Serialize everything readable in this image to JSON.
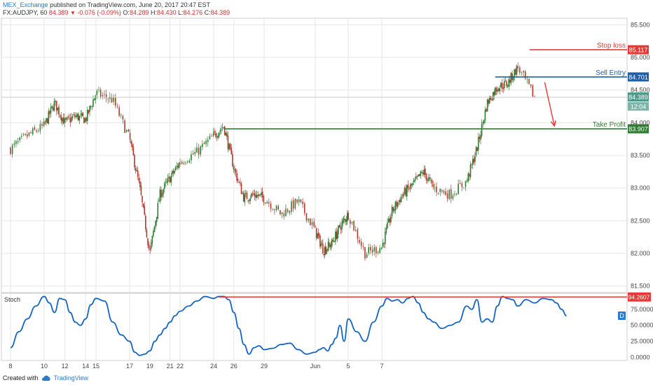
{
  "header": {
    "publisher": "MEX_Exchange",
    "published_text": "published on TradingView.com, June 20, 2017 20:47 EST",
    "symbol": "FX:AUDJPY, 60",
    "last": "84.389",
    "change": "-0.076 (-0.09%)",
    "open_label": "O:",
    "open": "84.289",
    "high_label": "H:",
    "high": "84.430",
    "low_label": "L:",
    "low": "84.276",
    "close_label": "C:",
    "close": "84.389"
  },
  "footer": {
    "created_with": "Created with",
    "brand": "TradingView"
  },
  "colors": {
    "up": "#2e7d32",
    "down": "#b03a2e",
    "stop": "#e53935",
    "entry": "#1f5fa8",
    "target": "#2e7d32",
    "stoch": "#1565c0",
    "current": "#4f9a8b",
    "grid": "#e6e6e6"
  },
  "chart_data": [
    {
      "type": "candlestick",
      "title": "",
      "ylim": [
        81.4,
        85.6
      ],
      "y_ticks": [
        "85.500",
        "85.000",
        "84.500",
        "84.000",
        "83.500",
        "83.000",
        "82.500",
        "82.000",
        "81.500"
      ],
      "x_ticks": [
        "8",
        "10",
        "15",
        "17",
        "22",
        "24",
        "29",
        "Jun",
        "5",
        "7",
        "12",
        "14",
        "19",
        "21",
        "26"
      ],
      "close_path": [
        [
          "May 8",
          83.6
        ],
        [
          "May 9",
          83.8
        ],
        [
          "May 10",
          83.95
        ],
        [
          "May 11",
          84.3
        ],
        [
          "May 12",
          84.0
        ],
        [
          "May 13",
          84.1
        ],
        [
          "May 14",
          84.05
        ],
        [
          "May 15",
          84.45
        ],
        [
          "May 16",
          84.35
        ],
        [
          "May 17",
          83.75
        ],
        [
          "May 18",
          83.0
        ],
        [
          "May 19",
          82.0
        ],
        [
          "May 20",
          82.9
        ],
        [
          "May 21",
          83.15
        ],
        [
          "May 22",
          83.4
        ],
        [
          "May 23",
          83.55
        ],
        [
          "May 24",
          83.8
        ],
        [
          "May 25",
          83.95
        ],
        [
          "May 26",
          83.3
        ],
        [
          "May 27",
          82.85
        ],
        [
          "May 28",
          82.9
        ],
        [
          "May 29",
          82.85
        ],
        [
          "May 30",
          82.6
        ],
        [
          "May 31",
          82.8
        ],
        [
          "Jun 1",
          82.35
        ],
        [
          "Jun 2",
          82.05
        ],
        [
          "Jun 3",
          82.15
        ],
        [
          "Jun 4",
          82.4
        ],
        [
          "Jun 5",
          82.6
        ],
        [
          "Jun 6",
          82.0
        ],
        [
          "Jun 7",
          82.1
        ],
        [
          "Jun 8",
          82.65
        ],
        [
          "Jun 9",
          82.9
        ],
        [
          "Jun 10",
          83.05
        ],
        [
          "Jun 11",
          83.25
        ],
        [
          "Jun 12",
          83.0
        ],
        [
          "Jun 13",
          82.9
        ],
        [
          "Jun 14",
          83.1
        ],
        [
          "Jun 15",
          83.6
        ],
        [
          "Jun 16",
          84.3
        ],
        [
          "Jun 17",
          84.55
        ],
        [
          "Jun 18",
          84.6
        ],
        [
          "Jun 19",
          84.85
        ],
        [
          "Jun 20",
          84.389
        ]
      ],
      "levels": [
        {
          "label": "Stop loss",
          "value": "85.117",
          "price": 85.117,
          "color": "#e53935",
          "from": "Jun 19.7"
        },
        {
          "label": "Sell Entry",
          "value": "84.701",
          "price": 84.701,
          "color": "#1f5fa8",
          "from": "Jun 16.8"
        },
        {
          "label": "Take Profit",
          "value": "83.907",
          "price": 83.907,
          "color": "#2e7d32",
          "from": "May 25"
        }
      ],
      "current_price": "84.389",
      "countdown": "12:04",
      "annotations": [
        "Stop loss",
        "Sell Entry",
        "Take Profit",
        "down-arrow"
      ]
    },
    {
      "type": "line",
      "title": "Stoch",
      "ylim": [
        -5,
        100
      ],
      "y_ticks": [
        "75.0000",
        "50.0000",
        "25.0000",
        "0.0000"
      ],
      "level_value": "94.2607",
      "level": 94.2607,
      "badge": "D",
      "series": [
        {
          "values": [
            [
              8.0,
              15
            ],
            [
              8.5,
              40
            ],
            [
              9.0,
              60
            ],
            [
              9.5,
              80
            ],
            [
              10.0,
              95
            ],
            [
              10.5,
              85
            ],
            [
              11.0,
              70
            ],
            [
              11.5,
              92
            ],
            [
              12.0,
              90
            ],
            [
              12.5,
              70
            ],
            [
              13.0,
              55
            ],
            [
              13.5,
              50
            ],
            [
              14.0,
              60
            ],
            [
              14.5,
              82
            ],
            [
              15.0,
              92
            ],
            [
              15.5,
              88
            ],
            [
              16.0,
              55
            ],
            [
              16.5,
              35
            ],
            [
              17.0,
              25
            ],
            [
              17.5,
              8
            ],
            [
              18.0,
              3
            ],
            [
              18.5,
              5
            ],
            [
              19.0,
              10
            ],
            [
              19.5,
              25
            ],
            [
              20.0,
              35
            ],
            [
              20.5,
              45
            ],
            [
              21.0,
              55
            ],
            [
              21.5,
              65
            ],
            [
              22.0,
              72
            ],
            [
              22.5,
              80
            ],
            [
              23.0,
              88
            ],
            [
              23.5,
              95
            ],
            [
              24.0,
              92
            ],
            [
              24.5,
              95
            ],
            [
              25.0,
              95
            ],
            [
              25.5,
              90
            ],
            [
              26.0,
              70
            ],
            [
              26.5,
              45
            ],
            [
              27.0,
              20
            ],
            [
              27.5,
              5
            ],
            [
              28.0,
              15
            ],
            [
              28.5,
              18
            ],
            [
              29.0,
              12
            ],
            [
              29.5,
              14
            ],
            [
              30.0,
              20
            ],
            [
              30.5,
              22
            ],
            [
              31.0,
              12
            ],
            [
              31.5,
              5
            ],
            [
              32.0,
              8
            ],
            [
              32.5,
              12
            ],
            [
              33.0,
              15
            ],
            [
              33.5,
              10
            ],
            [
              34.0,
              20
            ],
            [
              34.5,
              30
            ],
            [
              35.0,
              50
            ],
            [
              35.5,
              25
            ],
            [
              36.0,
              60
            ],
            [
              36.5,
              40
            ],
            [
              37.0,
              25
            ],
            [
              37.5,
              55
            ],
            [
              38.0,
              80
            ],
            [
              38.5,
              92
            ],
            [
              39.0,
              88
            ],
            [
              39.5,
              90
            ],
            [
              40.0,
              85
            ],
            [
              40.5,
              92
            ],
            [
              41.0,
              95
            ],
            [
              41.5,
              85
            ],
            [
              42.0,
              70
            ],
            [
              42.5,
              60
            ],
            [
              43.0,
              55
            ],
            [
              43.5,
              45
            ],
            [
              44.0,
              50
            ],
            [
              44.5,
              55
            ],
            [
              45.0,
              80
            ],
            [
              45.5,
              75
            ],
            [
              46.0,
              90
            ],
            [
              46.5,
              55
            ],
            [
              47.0,
              60
            ],
            [
              47.5,
              55
            ],
            [
              48.0,
              80
            ],
            [
              48.5,
              95
            ],
            [
              49.0,
              92
            ],
            [
              49.5,
              90
            ],
            [
              50.0,
              80
            ],
            [
              50.5,
              90
            ],
            [
              51.0,
              85
            ],
            [
              51.5,
              92
            ],
            [
              52.0,
              90
            ],
            [
              52.5,
              85
            ],
            [
              53.0,
              75
            ],
            [
              53.5,
              65
            ]
          ]
        }
      ]
    }
  ]
}
